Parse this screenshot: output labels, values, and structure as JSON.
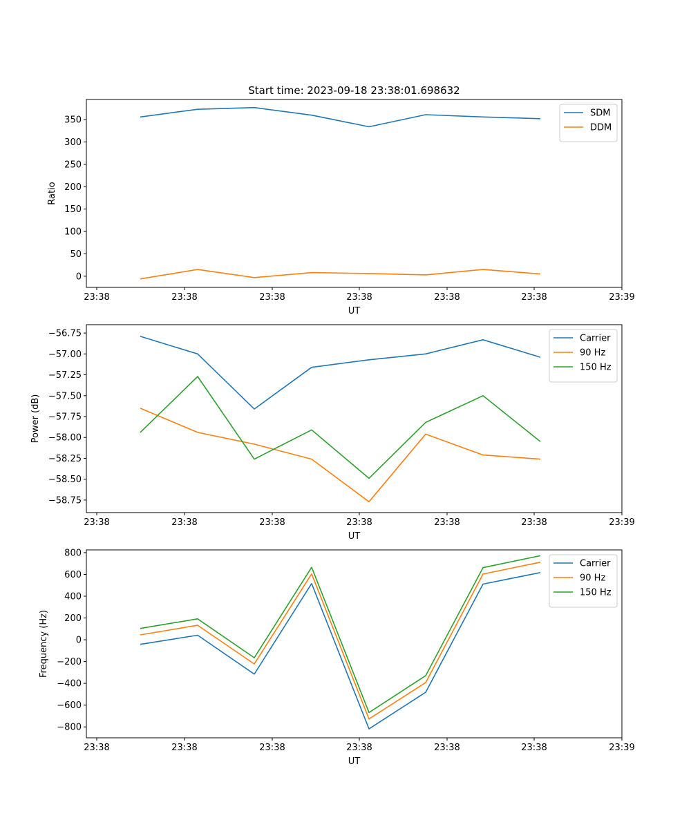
{
  "title": "Start time: 2023-09-18 23:38:01.698632",
  "colors": {
    "blue": "#1f77b4",
    "orange": "#ff7f0e",
    "green": "#2ca02c"
  },
  "chart_data": [
    {
      "type": "line",
      "xlabel": "UT",
      "ylabel": "Ratio",
      "x_tick_labels": [
        "23:38",
        "23:38",
        "23:38",
        "23:38",
        "23:38",
        "23:38",
        "23:38"
      ],
      "x_end_tick_label": "23:39",
      "ylim": [
        -25,
        395
      ],
      "yticks": [
        0,
        50,
        100,
        150,
        200,
        250,
        300,
        350
      ],
      "ytick_labels": [
        "0",
        "50",
        "100",
        "150",
        "200",
        "250",
        "300",
        "350"
      ],
      "legend": "top-right",
      "series": [
        {
          "name": "SDM",
          "color": "#1f77b4",
          "values": [
            356,
            373,
            377,
            360,
            334,
            361,
            356,
            352
          ]
        },
        {
          "name": "DDM",
          "color": "#ff7f0e",
          "values": [
            -6,
            15,
            -3,
            8,
            6,
            3,
            15,
            5
          ]
        }
      ]
    },
    {
      "type": "line",
      "xlabel": "UT",
      "ylabel": "Power (dB)",
      "x_tick_labels": [
        "23:38",
        "23:38",
        "23:38",
        "23:38",
        "23:38",
        "23:38",
        "23:38"
      ],
      "x_end_tick_label": "23:39",
      "ylim": [
        -58.9,
        -56.65
      ],
      "yticks": [
        -58.75,
        -58.5,
        -58.25,
        -58.0,
        -57.75,
        -57.5,
        -57.25,
        -57.0,
        -56.75
      ],
      "ytick_labels": [
        "−58.75",
        "−58.50",
        "−58.25",
        "−58.00",
        "−57.75",
        "−57.50",
        "−57.25",
        "−57.00",
        "−56.75"
      ],
      "legend": "top-right",
      "series": [
        {
          "name": "Carrier",
          "color": "#1f77b4",
          "values": [
            -56.79,
            -57.0,
            -57.66,
            -57.16,
            -57.07,
            -57.0,
            -56.83,
            -57.04
          ]
        },
        {
          "name": "90 Hz",
          "color": "#ff7f0e",
          "values": [
            -57.65,
            -57.94,
            -58.08,
            -58.26,
            -58.77,
            -57.96,
            -58.21,
            -58.26
          ]
        },
        {
          "name": "150 Hz",
          "color": "#2ca02c",
          "values": [
            -57.94,
            -57.27,
            -58.26,
            -57.91,
            -58.49,
            -57.82,
            -57.5,
            -58.05
          ]
        }
      ]
    },
    {
      "type": "line",
      "xlabel": "UT",
      "ylabel": "Frequency (Hz)",
      "x_tick_labels": [
        "23:38",
        "23:38",
        "23:38",
        "23:38",
        "23:38",
        "23:38",
        "23:38"
      ],
      "x_end_tick_label": "23:39",
      "ylim": [
        -900,
        825
      ],
      "yticks": [
        -800,
        -600,
        -400,
        -200,
        0,
        200,
        400,
        600,
        800
      ],
      "ytick_labels": [
        "−800",
        "−600",
        "−400",
        "−200",
        "0",
        "200",
        "400",
        "600",
        "800"
      ],
      "legend": "top-right",
      "series": [
        {
          "name": "Carrier",
          "color": "#1f77b4",
          "values": [
            -42,
            42,
            -315,
            516,
            -818,
            -482,
            511,
            617
          ]
        },
        {
          "name": "90 Hz",
          "color": "#ff7f0e",
          "values": [
            45,
            133,
            -222,
            605,
            -727,
            -393,
            603,
            712
          ]
        },
        {
          "name": "150 Hz",
          "color": "#2ca02c",
          "values": [
            104,
            192,
            -165,
            665,
            -668,
            -330,
            662,
            772
          ]
        }
      ]
    }
  ]
}
